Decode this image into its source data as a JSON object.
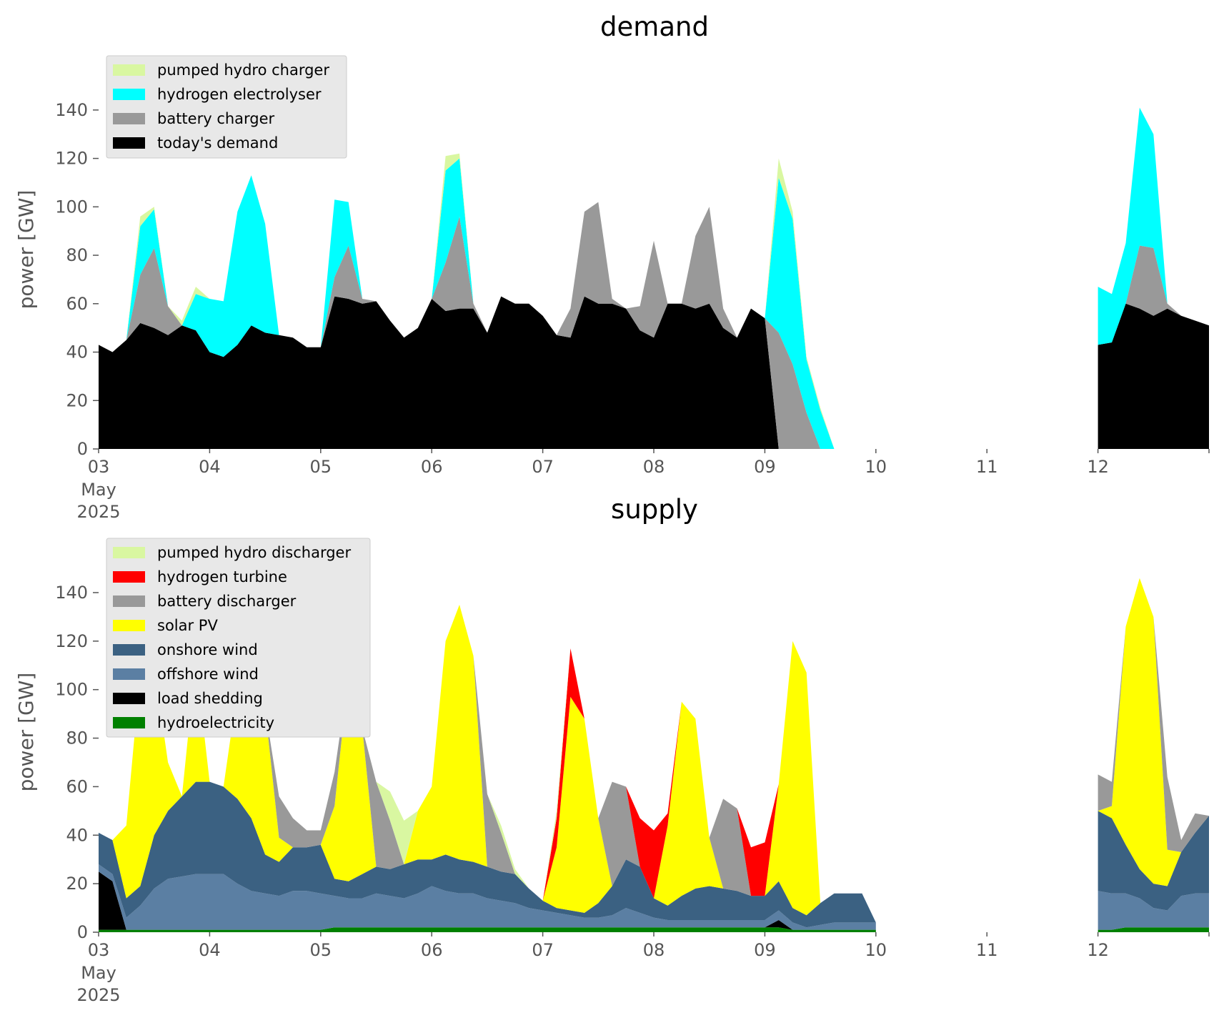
{
  "chart_data": [
    {
      "type": "area",
      "title": "demand",
      "ylabel": "power [GW]",
      "xlabel": "",
      "ylim": [
        0,
        150
      ],
      "xlim": [
        "2025-05-03",
        "2025-05-13"
      ],
      "x_tick_values": [
        "2025-05-03",
        "2025-05-04",
        "2025-05-05",
        "2025-05-06",
        "2025-05-07",
        "2025-05-08",
        "2025-05-09",
        "2025-05-10",
        "2025-05-11",
        "2025-05-12",
        "2025-05-13"
      ],
      "x_tick_labels": [
        "03",
        "04",
        "05",
        "06",
        "07",
        "08",
        "09",
        "10",
        "11",
        "12",
        ""
      ],
      "x_tick_sublabel": [
        "May",
        "2025"
      ],
      "y_ticks": [
        0,
        20,
        40,
        60,
        80,
        100,
        120,
        140
      ],
      "grid": false,
      "legend_position": "top-left",
      "stacked": true,
      "x": [
        "2025-05-03T00:00",
        "2025-05-03T03:00",
        "2025-05-03T06:00",
        "2025-05-03T09:00",
        "2025-05-03T12:00",
        "2025-05-03T15:00",
        "2025-05-03T18:00",
        "2025-05-03T21:00",
        "2025-05-04T00:00",
        "2025-05-04T03:00",
        "2025-05-04T06:00",
        "2025-05-04T09:00",
        "2025-05-04T12:00",
        "2025-05-04T15:00",
        "2025-05-04T18:00",
        "2025-05-04T21:00",
        "2025-05-05T00:00",
        "2025-05-05T03:00",
        "2025-05-05T06:00",
        "2025-05-05T09:00",
        "2025-05-05T12:00",
        "2025-05-05T15:00",
        "2025-05-05T18:00",
        "2025-05-05T21:00",
        "2025-05-06T00:00",
        "2025-05-06T03:00",
        "2025-05-06T06:00",
        "2025-05-06T09:00",
        "2025-05-06T12:00",
        "2025-05-06T15:00",
        "2025-05-06T18:00",
        "2025-05-06T21:00",
        "2025-05-07T00:00",
        "2025-05-07T03:00",
        "2025-05-07T06:00",
        "2025-05-07T09:00",
        "2025-05-07T12:00",
        "2025-05-07T15:00",
        "2025-05-07T18:00",
        "2025-05-07T21:00",
        "2025-05-08T00:00",
        "2025-05-08T03:00",
        "2025-05-08T06:00",
        "2025-05-08T09:00",
        "2025-05-08T12:00",
        "2025-05-08T15:00",
        "2025-05-08T18:00",
        "2025-05-08T21:00",
        "2025-05-09T00:00",
        "2025-05-09T03:00",
        "2025-05-09T06:00",
        "2025-05-09T09:00",
        "2025-05-09T12:00",
        "2025-05-09T15:00",
        "2025-05-09T18:00",
        "2025-05-09T21:00",
        "2025-05-10T00:00",
        null,
        "2025-05-12T00:00",
        "2025-05-12T03:00",
        "2025-05-12T06:00",
        "2025-05-12T09:00",
        "2025-05-12T12:00",
        "2025-05-12T15:00",
        "2025-05-12T18:00",
        "2025-05-12T21:00",
        "2025-05-13T00:00"
      ],
      "series": [
        {
          "name": "today's demand",
          "color": "#000000",
          "values": [
            43,
            40,
            45,
            52,
            50,
            47,
            51,
            49,
            40,
            38,
            43,
            51,
            48,
            47,
            46,
            42,
            42,
            63,
            62,
            60,
            61,
            53,
            46,
            50,
            62,
            57,
            58,
            58,
            48,
            63,
            60,
            60,
            55,
            47,
            46,
            63,
            60,
            60,
            58,
            49,
            46,
            60,
            60,
            58,
            60,
            50,
            46,
            58,
            54,
            0,
            0,
            0,
            0,
            0,
            0,
            0,
            0,
            null,
            43,
            44,
            60,
            58,
            55,
            58,
            55,
            53,
            51
          ]
        },
        {
          "name": "battery charger",
          "color": "#999999",
          "values": [
            0,
            0,
            0,
            20,
            33,
            12,
            0,
            0,
            0,
            0,
            0,
            0,
            0,
            0,
            0,
            0,
            0,
            8,
            22,
            2,
            0,
            0,
            0,
            0,
            0,
            20,
            38,
            2,
            0,
            0,
            0,
            0,
            0,
            0,
            12,
            35,
            42,
            2,
            0,
            10,
            40,
            0,
            0,
            30,
            40,
            8,
            0,
            0,
            0,
            48,
            35,
            15,
            0,
            0,
            0,
            0,
            0,
            null,
            0,
            0,
            0,
            26,
            28,
            2,
            0,
            0,
            0
          ]
        },
        {
          "name": "hydrogen electrolyser",
          "color": "#00ffff",
          "values": [
            0,
            0,
            0,
            20,
            16,
            0,
            0,
            15,
            22,
            23,
            55,
            62,
            45,
            0,
            0,
            0,
            0,
            32,
            18,
            0,
            0,
            0,
            0,
            0,
            0,
            38,
            24,
            0,
            0,
            0,
            0,
            0,
            0,
            0,
            0,
            0,
            0,
            0,
            0,
            0,
            0,
            0,
            0,
            0,
            0,
            0,
            0,
            0,
            0,
            64,
            60,
            22,
            16,
            0,
            0,
            0,
            0,
            null,
            24,
            20,
            25,
            57,
            47,
            0,
            0,
            0,
            0
          ]
        },
        {
          "name": "pumped hydro charger",
          "color": "#d9f7a1",
          "values": [
            0,
            0,
            0,
            4,
            1,
            0,
            2,
            3,
            0,
            0,
            0,
            0,
            0,
            0,
            0,
            0,
            0,
            0,
            0,
            0,
            0,
            0,
            0,
            0,
            0,
            6,
            2,
            0,
            0,
            0,
            0,
            0,
            0,
            0,
            0,
            0,
            0,
            0,
            0,
            0,
            0,
            0,
            0,
            0,
            0,
            0,
            0,
            0,
            0,
            8,
            3,
            1,
            1,
            0,
            0,
            0,
            0,
            null,
            0,
            0,
            0,
            0,
            0,
            0,
            0,
            0,
            0
          ]
        }
      ]
    },
    {
      "type": "area",
      "title": "supply",
      "ylabel": "power [GW]",
      "xlabel": "",
      "ylim": [
        0,
        150
      ],
      "xlim": [
        "2025-05-03",
        "2025-05-13"
      ],
      "x_tick_values": [
        "2025-05-03",
        "2025-05-04",
        "2025-05-05",
        "2025-05-06",
        "2025-05-07",
        "2025-05-08",
        "2025-05-09",
        "2025-05-10",
        "2025-05-11",
        "2025-05-12",
        "2025-05-13"
      ],
      "x_tick_labels": [
        "03",
        "04",
        "05",
        "06",
        "07",
        "08",
        "09",
        "10",
        "11",
        "12",
        ""
      ],
      "x_tick_sublabel": [
        "May",
        "2025"
      ],
      "y_ticks": [
        0,
        20,
        40,
        60,
        80,
        100,
        120,
        140
      ],
      "grid": false,
      "legend_position": "top-left",
      "stacked": true,
      "x": [
        "2025-05-03T00:00",
        "2025-05-03T03:00",
        "2025-05-03T06:00",
        "2025-05-03T09:00",
        "2025-05-03T12:00",
        "2025-05-03T15:00",
        "2025-05-03T18:00",
        "2025-05-03T21:00",
        "2025-05-04T00:00",
        "2025-05-04T03:00",
        "2025-05-04T06:00",
        "2025-05-04T09:00",
        "2025-05-04T12:00",
        "2025-05-04T15:00",
        "2025-05-04T18:00",
        "2025-05-04T21:00",
        "2025-05-05T00:00",
        "2025-05-05T03:00",
        "2025-05-05T06:00",
        "2025-05-05T09:00",
        "2025-05-05T12:00",
        "2025-05-05T15:00",
        "2025-05-05T18:00",
        "2025-05-05T21:00",
        "2025-05-06T00:00",
        "2025-05-06T03:00",
        "2025-05-06T06:00",
        "2025-05-06T09:00",
        "2025-05-06T12:00",
        "2025-05-06T15:00",
        "2025-05-06T18:00",
        "2025-05-06T21:00",
        "2025-05-07T00:00",
        "2025-05-07T03:00",
        "2025-05-07T06:00",
        "2025-05-07T09:00",
        "2025-05-07T12:00",
        "2025-05-07T15:00",
        "2025-05-07T18:00",
        "2025-05-07T21:00",
        "2025-05-08T00:00",
        "2025-05-08T03:00",
        "2025-05-08T06:00",
        "2025-05-08T09:00",
        "2025-05-08T12:00",
        "2025-05-08T15:00",
        "2025-05-08T18:00",
        "2025-05-08T21:00",
        "2025-05-09T00:00",
        "2025-05-09T03:00",
        "2025-05-09T06:00",
        "2025-05-09T09:00",
        "2025-05-09T12:00",
        "2025-05-09T15:00",
        "2025-05-09T18:00",
        "2025-05-09T21:00",
        "2025-05-10T00:00",
        null,
        "2025-05-12T00:00",
        "2025-05-12T03:00",
        "2025-05-12T06:00",
        "2025-05-12T09:00",
        "2025-05-12T12:00",
        "2025-05-12T15:00",
        "2025-05-12T18:00",
        "2025-05-12T21:00",
        "2025-05-13T00:00"
      ],
      "series": [
        {
          "name": "hydroelectricity",
          "color": "#008000",
          "values": [
            1,
            1,
            1,
            1,
            1,
            1,
            1,
            1,
            1,
            1,
            1,
            1,
            1,
            1,
            1,
            1,
            1,
            2,
            2,
            2,
            2,
            2,
            2,
            2,
            2,
            2,
            2,
            2,
            2,
            2,
            2,
            2,
            2,
            2,
            2,
            2,
            2,
            2,
            2,
            2,
            2,
            2,
            2,
            2,
            2,
            2,
            2,
            2,
            2,
            2,
            1,
            1,
            1,
            1,
            1,
            1,
            1,
            null,
            1,
            1,
            2,
            2,
            2,
            2,
            2,
            2,
            2
          ]
        },
        {
          "name": "load shedding",
          "color": "#000000",
          "values": [
            24,
            20,
            0,
            0,
            0,
            0,
            0,
            0,
            0,
            0,
            0,
            0,
            0,
            0,
            0,
            0,
            0,
            0,
            0,
            0,
            0,
            0,
            0,
            0,
            0,
            0,
            0,
            0,
            0,
            0,
            0,
            0,
            0,
            0,
            0,
            0,
            0,
            0,
            0,
            0,
            0,
            0,
            0,
            0,
            0,
            0,
            0,
            0,
            0,
            3,
            0,
            0,
            0,
            0,
            0,
            0,
            0,
            null,
            0,
            0,
            0,
            0,
            0,
            0,
            0,
            0,
            0
          ]
        },
        {
          "name": "offshore wind",
          "color": "#5b7fa3",
          "values": [
            3,
            3,
            5,
            10,
            17,
            21,
            22,
            23,
            23,
            23,
            19,
            16,
            15,
            14,
            16,
            16,
            15,
            13,
            12,
            12,
            14,
            13,
            12,
            14,
            17,
            15,
            14,
            14,
            12,
            11,
            10,
            8,
            7,
            6,
            5,
            4,
            4,
            5,
            8,
            6,
            4,
            3,
            3,
            3,
            3,
            3,
            3,
            3,
            3,
            4,
            3,
            1,
            2,
            3,
            3,
            3,
            3,
            null,
            16,
            15,
            14,
            12,
            8,
            7,
            13,
            14,
            14
          ]
        },
        {
          "name": "onshore wind",
          "color": "#3b6182",
          "values": [
            13,
            14,
            8,
            8,
            22,
            28,
            33,
            38,
            38,
            36,
            35,
            30,
            16,
            14,
            18,
            18,
            20,
            7,
            7,
            10,
            11,
            11,
            14,
            14,
            11,
            15,
            14,
            13,
            13,
            12,
            12,
            8,
            4,
            2,
            2,
            2,
            6,
            12,
            20,
            19,
            8,
            6,
            10,
            13,
            14,
            13,
            12,
            10,
            10,
            12,
            6,
            5,
            9,
            12,
            12,
            12,
            0,
            null,
            33,
            31,
            20,
            12,
            10,
            10,
            18,
            25,
            32
          ]
        },
        {
          "name": "solar PV",
          "color": "#ffff00",
          "values": [
            0,
            0,
            30,
            88,
            70,
            20,
            0,
            50,
            0,
            0,
            45,
            82,
            60,
            10,
            0,
            0,
            0,
            30,
            85,
            60,
            0,
            0,
            0,
            20,
            30,
            88,
            105,
            85,
            0,
            0,
            0,
            0,
            0,
            25,
            88,
            80,
            35,
            0,
            0,
            0,
            0,
            33,
            80,
            70,
            20,
            0,
            0,
            0,
            0,
            40,
            110,
            100,
            0,
            0,
            0,
            0,
            0,
            null,
            0,
            5,
            90,
            120,
            110,
            15,
            0,
            0,
            0
          ]
        },
        {
          "name": "battery discharger",
          "color": "#999999",
          "values": [
            0,
            0,
            0,
            0,
            0,
            0,
            0,
            0,
            0,
            0,
            0,
            0,
            0,
            17,
            12,
            7,
            6,
            14,
            0,
            0,
            35,
            20,
            0,
            0,
            0,
            0,
            0,
            0,
            30,
            16,
            0,
            0,
            0,
            0,
            0,
            0,
            0,
            43,
            30,
            0,
            0,
            0,
            0,
            0,
            0,
            37,
            34,
            0,
            0,
            0,
            0,
            0,
            0,
            0,
            0,
            0,
            0,
            null,
            15,
            10,
            0,
            0,
            0,
            30,
            5,
            8,
            0
          ]
        },
        {
          "name": "hydrogen turbine",
          "color": "#ff0000",
          "values": [
            0,
            0,
            0,
            0,
            0,
            0,
            0,
            0,
            0,
            0,
            0,
            0,
            0,
            0,
            0,
            0,
            0,
            0,
            0,
            0,
            0,
            0,
            0,
            0,
            0,
            0,
            0,
            0,
            0,
            0,
            0,
            0,
            0,
            12,
            20,
            0,
            0,
            0,
            0,
            20,
            28,
            5,
            0,
            0,
            0,
            0,
            0,
            20,
            22,
            0,
            0,
            0,
            0,
            0,
            0,
            0,
            0,
            null,
            0,
            0,
            0,
            0,
            0,
            0,
            0,
            0,
            0
          ]
        },
        {
          "name": "pumped hydro discharger",
          "color": "#d9f7a1",
          "values": [
            0,
            0,
            0,
            0,
            0,
            0,
            0,
            0,
            0,
            0,
            0,
            0,
            0,
            0,
            0,
            0,
            0,
            0,
            0,
            0,
            0,
            12,
            18,
            0,
            0,
            0,
            0,
            0,
            0,
            3,
            2,
            0,
            0,
            3,
            0,
            0,
            0,
            0,
            0,
            0,
            0,
            0,
            0,
            0,
            0,
            0,
            0,
            0,
            0,
            0,
            0,
            0,
            0,
            0,
            0,
            0,
            0,
            null,
            0,
            0,
            0,
            0,
            0,
            0,
            0,
            0,
            0
          ]
        }
      ]
    }
  ]
}
